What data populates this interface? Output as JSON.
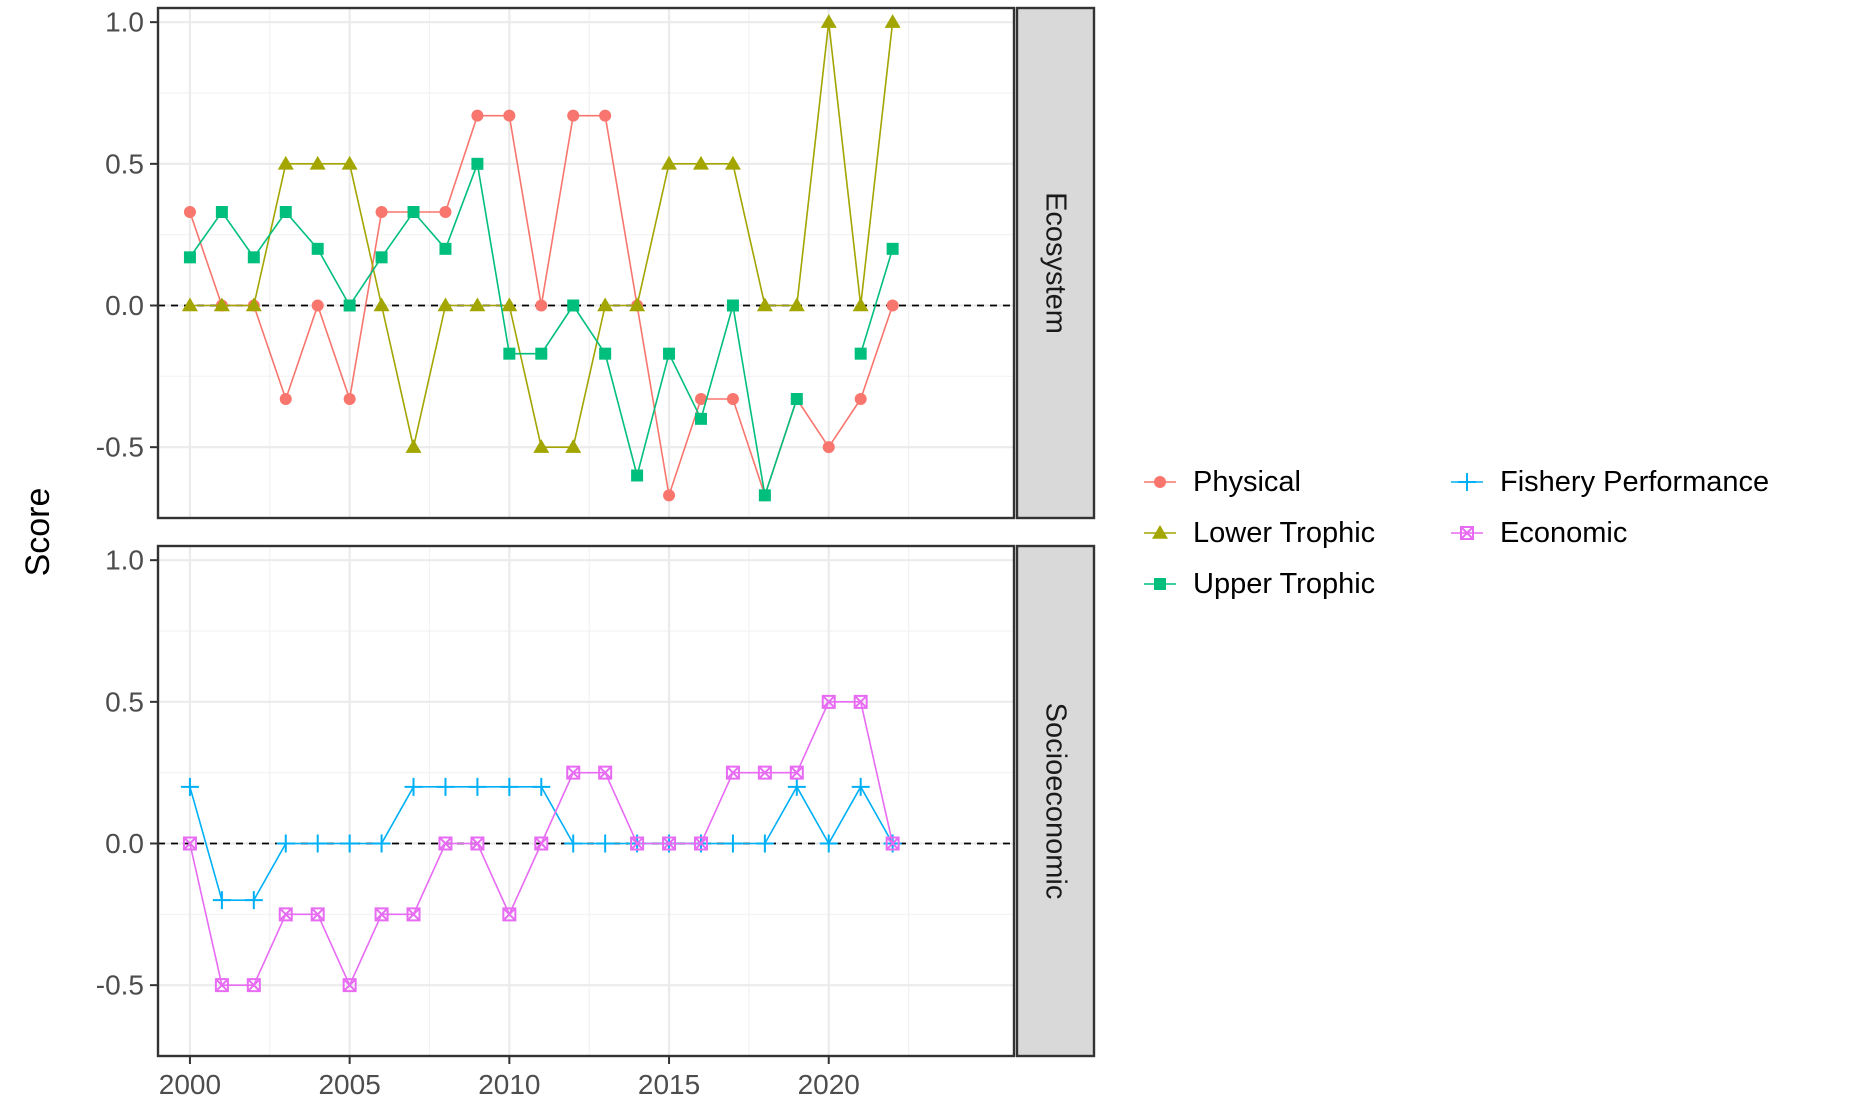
{
  "chart_data": {
    "type": "line",
    "ylabel": "Score",
    "xlabel": "",
    "x": [
      2000,
      2001,
      2002,
      2003,
      2004,
      2005,
      2006,
      2007,
      2008,
      2009,
      2010,
      2011,
      2012,
      2013,
      2014,
      2015,
      2016,
      2017,
      2018,
      2019,
      2020,
      2021,
      2022
    ],
    "x_ticks": [
      2000,
      2005,
      2010,
      2015,
      2020
    ],
    "xlim": [
      1999,
      2025.8
    ],
    "ylim": [
      -0.75,
      1.05
    ],
    "y_ticks": [
      -0.5,
      0.0,
      0.5,
      1.0
    ],
    "y_tick_labels": [
      "-0.5",
      "0.0",
      "0.5",
      "1.0"
    ],
    "reference_line": 0,
    "grid": true,
    "legend_position": "right",
    "colors": {
      "physical": "#F8766D",
      "lower_trophic": "#A3A500",
      "upper_trophic": "#00BF7D",
      "fishery_performance": "#00B0F6",
      "economic": "#E76BF3"
    },
    "facets": [
      {
        "name": "Ecosystem",
        "series": [
          {
            "key": "physical",
            "name": "Physical",
            "marker": "circle",
            "color": "#F8766D",
            "values": [
              0.33,
              0,
              0,
              -0.33,
              0,
              -0.33,
              0.33,
              0.33,
              0.33,
              0.67,
              0.67,
              0,
              0.67,
              0.67,
              0,
              -0.67,
              -0.33,
              -0.33,
              -0.67,
              -0.33,
              -0.5,
              -0.33,
              0
            ]
          },
          {
            "key": "lower_trophic",
            "name": "Lower Trophic",
            "marker": "triangle",
            "color": "#A3A500",
            "values": [
              0,
              0,
              0,
              0.5,
              0.5,
              0.5,
              0,
              -0.5,
              0,
              0,
              0,
              -0.5,
              -0.5,
              0,
              0,
              0.5,
              0.5,
              0.5,
              0,
              0,
              1,
              0,
              1
            ]
          },
          {
            "key": "upper_trophic",
            "name": "Upper Trophic",
            "marker": "square",
            "color": "#00BF7D",
            "values": [
              0.17,
              0.33,
              0.17,
              0.33,
              0.2,
              0,
              0.17,
              0.33,
              0.2,
              0.5,
              -0.17,
              -0.17,
              0,
              -0.17,
              -0.6,
              -0.17,
              -0.4,
              0,
              -0.67,
              -0.33,
              null,
              -0.17,
              0.2
            ]
          }
        ]
      },
      {
        "name": "Socioeconomic",
        "series": [
          {
            "key": "fishery_performance",
            "name": "Fishery Performance",
            "marker": "plus",
            "color": "#00B0F6",
            "values": [
              0.2,
              -0.2,
              -0.2,
              0,
              0,
              0,
              0,
              0.2,
              0.2,
              0.2,
              0.2,
              0.2,
              0,
              0,
              0,
              0,
              0,
              0,
              0,
              0.2,
              0,
              0.2,
              0
            ]
          },
          {
            "key": "economic",
            "name": "Economic",
            "marker": "boxx",
            "color": "#E76BF3",
            "values": [
              0,
              -0.5,
              -0.5,
              -0.25,
              -0.25,
              -0.5,
              -0.25,
              -0.25,
              0,
              0,
              -0.25,
              0,
              0.25,
              0.25,
              0,
              0,
              0,
              0.25,
              0.25,
              0.25,
              0.5,
              0.5,
              0
            ]
          }
        ]
      }
    ],
    "legend": {
      "columns": [
        [
          {
            "key": "physical",
            "label": "Physical"
          },
          {
            "key": "lower_trophic",
            "label": "Lower Trophic"
          },
          {
            "key": "upper_trophic",
            "label": "Upper Trophic"
          }
        ],
        [
          {
            "key": "fishery_performance",
            "label": "Fishery Performance"
          },
          {
            "key": "economic",
            "label": "Economic"
          }
        ]
      ]
    }
  }
}
